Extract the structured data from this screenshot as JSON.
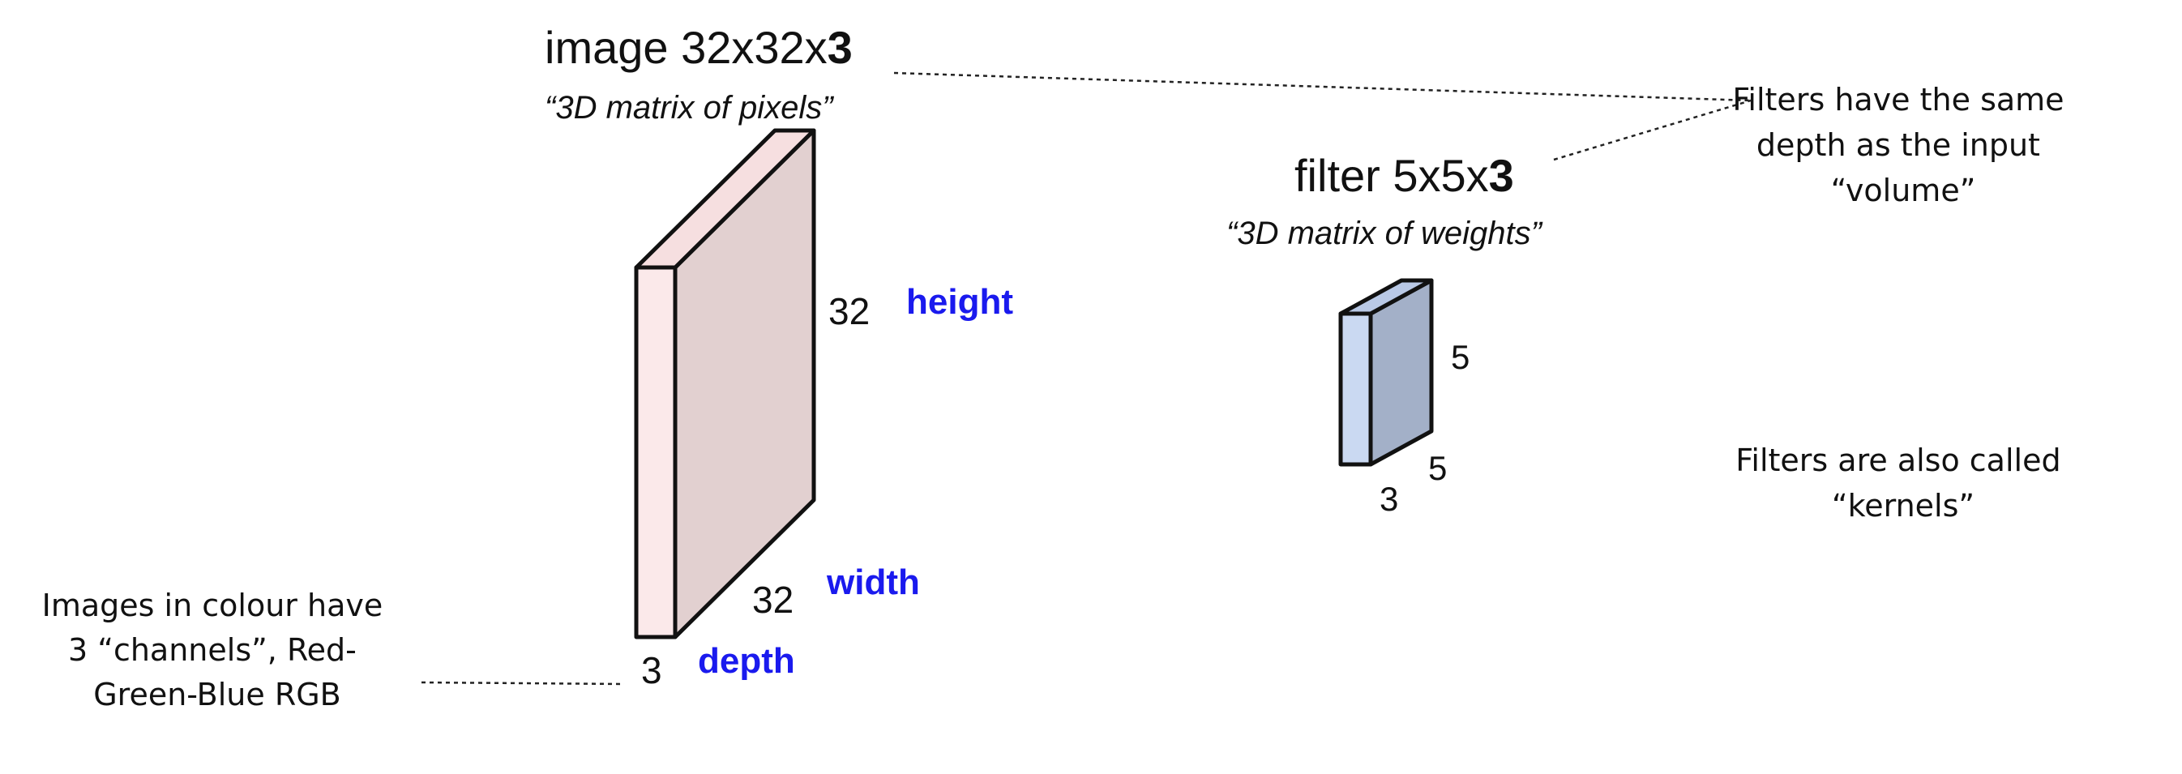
{
  "image_block": {
    "title_prefix": "image 32x32x",
    "title_bold": "3",
    "subtitle": "“3D matrix of pixels”",
    "label_height_value": "32",
    "label_height_word": "height",
    "label_width_value": "32",
    "label_width_word": "width",
    "label_depth_value": "3",
    "label_depth_word": "depth"
  },
  "filter_block": {
    "title_prefix": "filter 5x5x",
    "title_bold": "3",
    "subtitle": "“3D matrix of weights”",
    "label_height_value": "5",
    "label_width_value": "5",
    "label_depth_value": "3"
  },
  "notes": {
    "colour_channels": [
      "Images in colour have",
      "3 “channels”, Red-",
      "Green-Blue RGB"
    ],
    "same_depth": [
      "Filters have the same",
      "depth as the input",
      "“volume”"
    ],
    "kernels": [
      "Filters are also called",
      "“kernels”"
    ]
  },
  "colors": {
    "image_front": "#fbe9ea",
    "image_top": "#f6dfe0",
    "image_side": "#e2d0d0",
    "filter_front": "#cad9f2",
    "filter_top": "#b9c9e6",
    "filter_side": "#a3b0c8",
    "dimension_word": "#1a1aee",
    "stroke": "#111111"
  }
}
